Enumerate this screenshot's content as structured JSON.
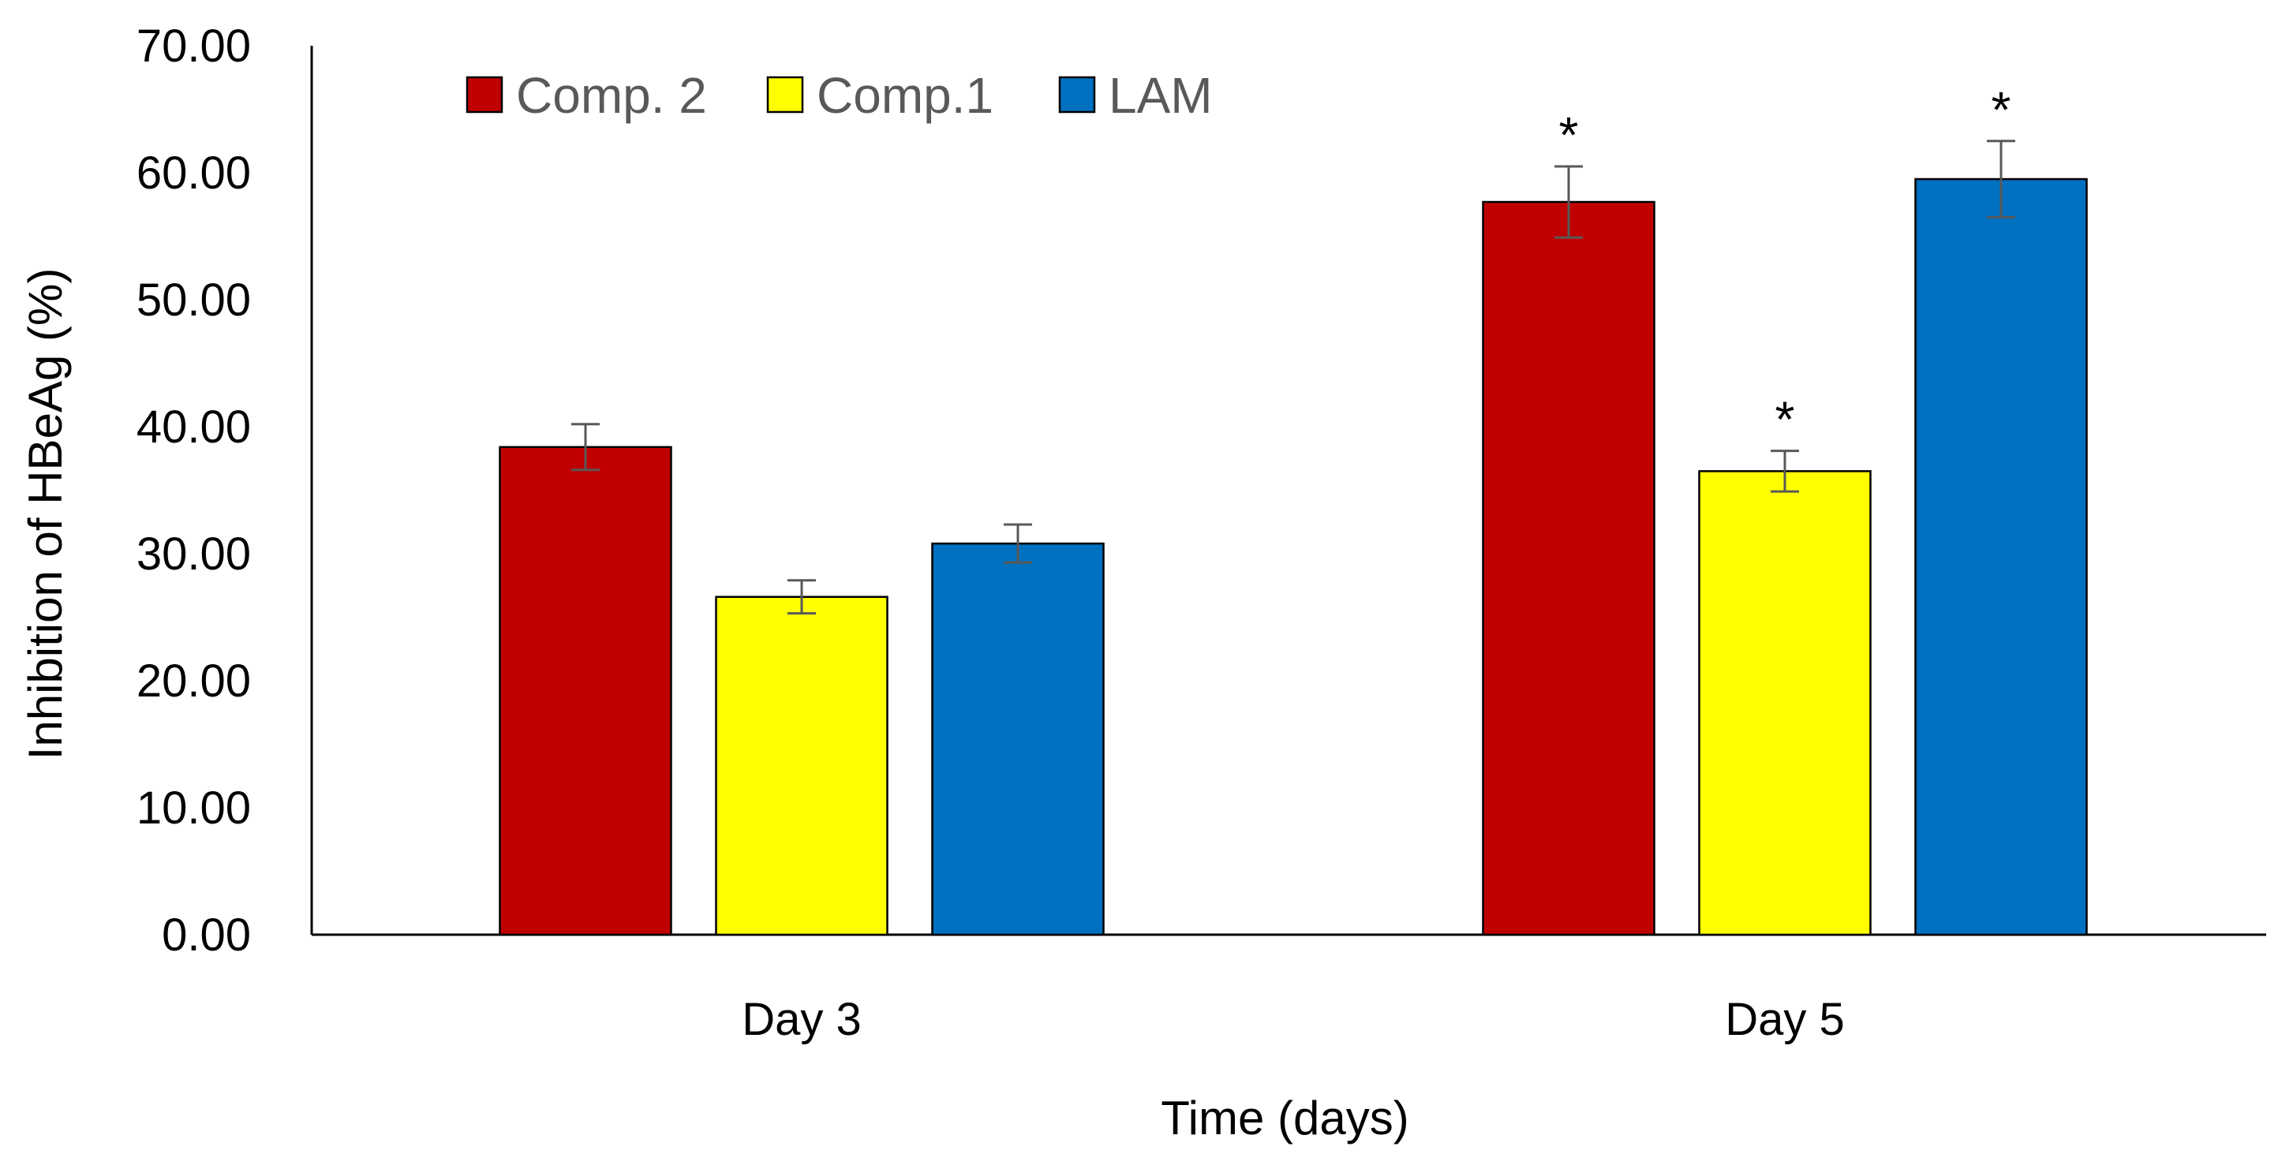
{
  "chart_data": {
    "type": "bar",
    "categories": [
      "Day 3",
      "Day 5"
    ],
    "series": [
      {
        "name": "Comp. 2",
        "color": "#C00000",
        "values": [
          38.4,
          57.7
        ],
        "errors": [
          1.8,
          2.8
        ],
        "annotations": [
          "",
          "*"
        ]
      },
      {
        "name": "Comp.1",
        "color": "#FFFF00",
        "values": [
          26.6,
          36.5
        ],
        "errors": [
          1.3,
          1.6
        ],
        "annotations": [
          "",
          "*"
        ]
      },
      {
        "name": "LAM",
        "color": "#0070C0",
        "values": [
          30.8,
          59.5
        ],
        "errors": [
          1.5,
          3.0
        ],
        "annotations": [
          "",
          "*"
        ]
      }
    ],
    "title": "",
    "xlabel": "Time (days)",
    "ylabel": "Inhibition of HBeAg (%)",
    "ylim": [
      0,
      70
    ],
    "yticks": [
      "0.00",
      "10.00",
      "20.00",
      "30.00",
      "40.00",
      "50.00",
      "60.00",
      "70.00"
    ],
    "grid": false,
    "legend_position": "top-left"
  }
}
